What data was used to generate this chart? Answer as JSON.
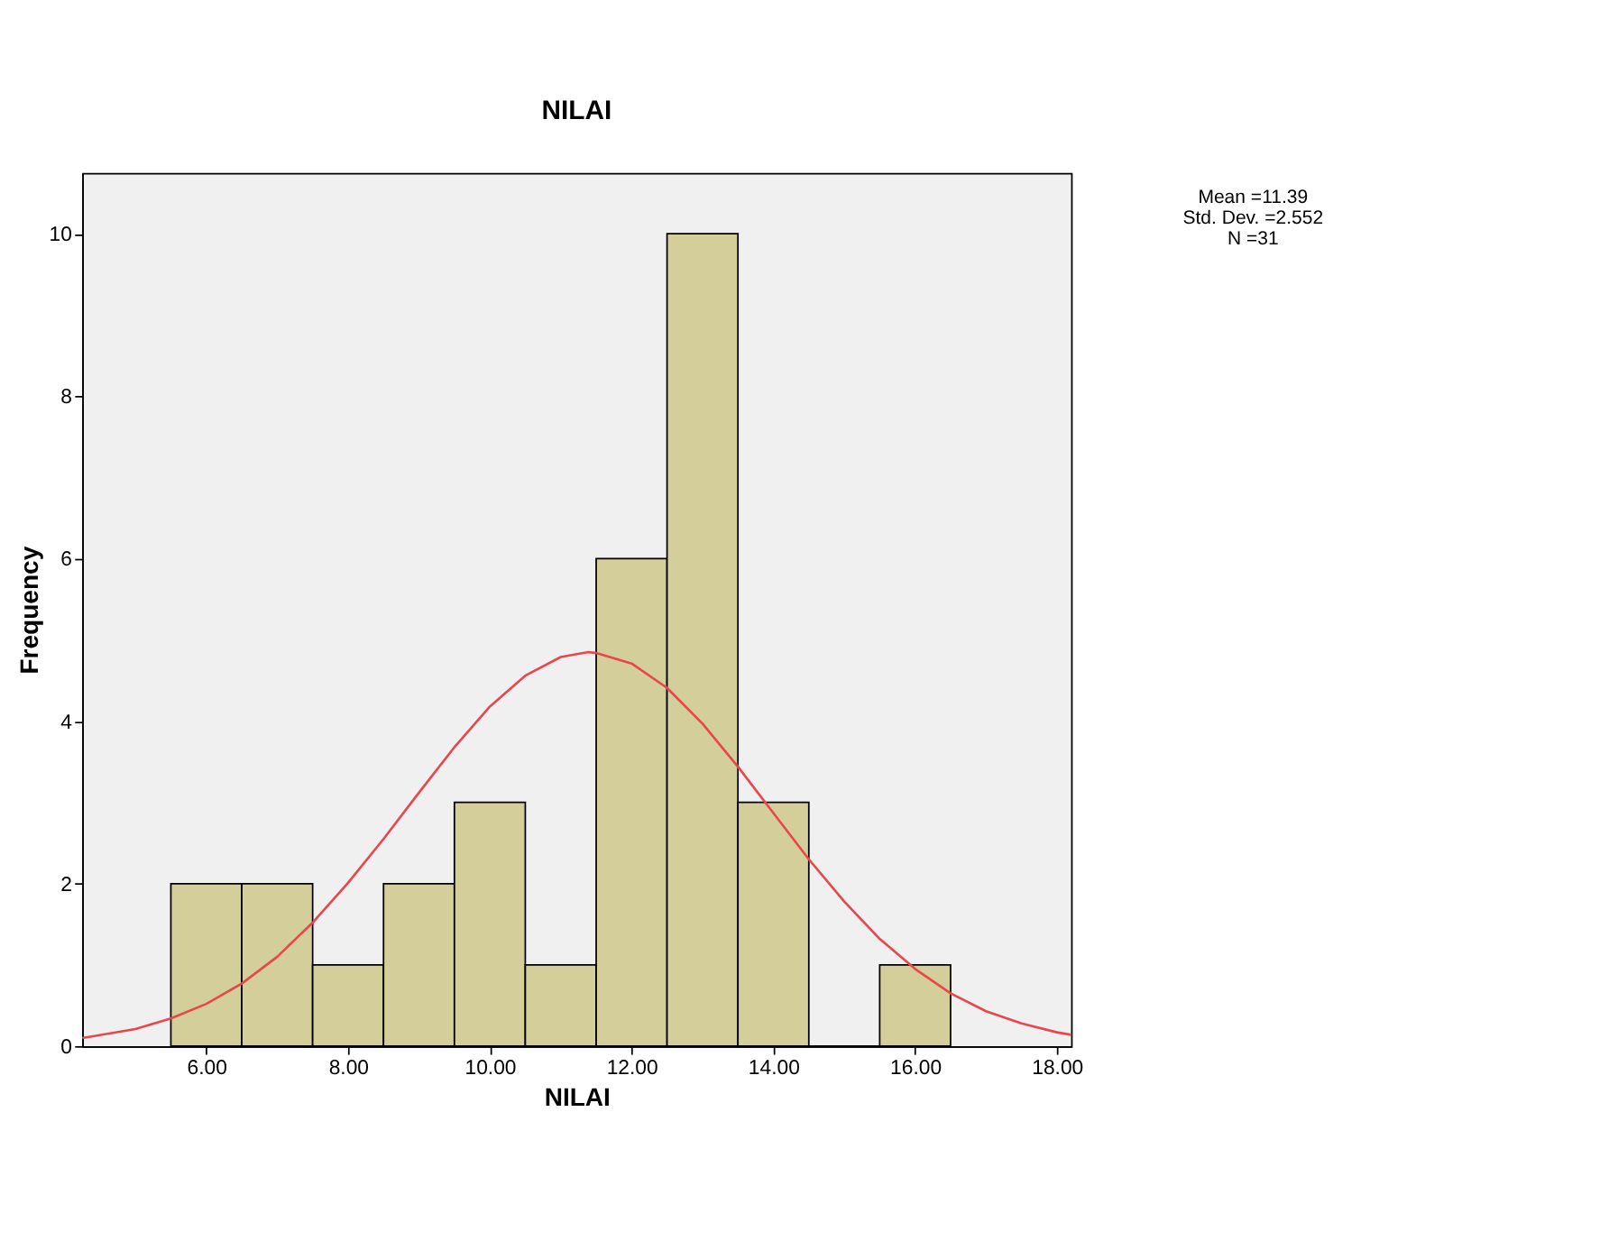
{
  "chart_data": {
    "type": "histogram",
    "title": "NILAI",
    "xlabel": "NILAI",
    "ylabel": "Frequency",
    "bins": [
      5.5,
      6.5,
      7.5,
      8.5,
      9.5,
      10.5,
      11.5,
      12.5,
      13.5,
      14.5,
      15.5,
      16.5
    ],
    "values": [
      2,
      2,
      1,
      2,
      3,
      1,
      6,
      10,
      3,
      0,
      1
    ],
    "color": "#d3ce9a",
    "series": [
      {
        "type": "line",
        "color": "#e8474d",
        "x": [
          4.25,
          5,
          5.5,
          6,
          6.5,
          7,
          7.5,
          8,
          8.5,
          9,
          9.5,
          10,
          10.5,
          11,
          11.39,
          11.5,
          12,
          12.5,
          13,
          13.5,
          14,
          14.5,
          15,
          15.5,
          16,
          16.5,
          17,
          17.5,
          18,
          18.2
        ],
        "values": [
          0.1,
          0.21,
          0.34,
          0.52,
          0.77,
          1.1,
          1.52,
          2.01,
          2.55,
          3.12,
          3.68,
          4.18,
          4.56,
          4.79,
          4.85,
          4.84,
          4.71,
          4.41,
          3.97,
          3.44,
          2.87,
          2.3,
          1.78,
          1.32,
          0.95,
          0.65,
          0.43,
          0.28,
          0.17,
          0.14
        ]
      }
    ],
    "xlim": [
      4.25,
      18.2
    ],
    "xticks": [
      {
        "value": 6,
        "label": "6.00"
      },
      {
        "value": 8,
        "label": "8.00"
      },
      {
        "value": 10,
        "label": "10.00"
      },
      {
        "value": 12,
        "label": "12.00"
      },
      {
        "value": 14,
        "label": "14.00"
      },
      {
        "value": 16,
        "label": "16.00"
      },
      {
        "value": 18,
        "label": "18.00"
      }
    ],
    "ylim": [
      0,
      10.75
    ],
    "yticks": [
      0,
      2,
      4,
      6,
      8,
      10
    ],
    "grid": false,
    "annotations": [
      "Mean =11.39",
      "Std. Dev. =2.552",
      "N =31"
    ]
  }
}
